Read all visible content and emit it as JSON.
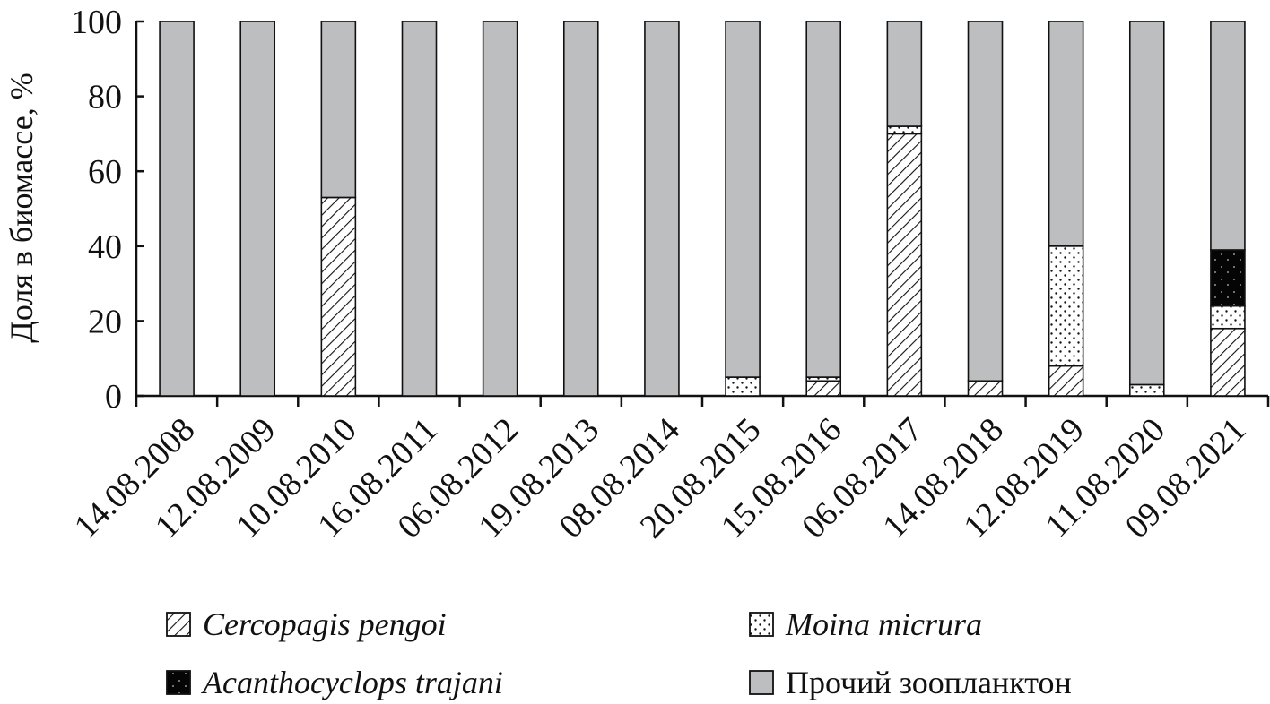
{
  "chart_data": {
    "type": "bar",
    "stacked": true,
    "title": "",
    "xlabel": "",
    "ylabel": "Доля в биомассе, %",
    "ylim": [
      0,
      100
    ],
    "yticks": [
      0,
      20,
      40,
      60,
      80,
      100
    ],
    "grid": false,
    "legend_position": "bottom",
    "categories": [
      "14.08.2008",
      "12.08.2009",
      "10.08.2010",
      "16.08.2011",
      "06.08.2012",
      "19.08.2013",
      "08.08.2014",
      "20.08.2015",
      "15.08.2016",
      "06.08.2017",
      "14.08.2018",
      "12.08.2019",
      "11.08.2020",
      "09.08.2021"
    ],
    "series": [
      {
        "name": "Cercopagis pengoi",
        "pattern": "hatch",
        "values": [
          0,
          0,
          53,
          0,
          0,
          0,
          0,
          0,
          4,
          70,
          4,
          8,
          0,
          18
        ]
      },
      {
        "name": "Moina micrura",
        "pattern": "dots",
        "values": [
          0,
          0,
          0,
          0,
          0,
          0,
          0,
          5,
          1,
          2,
          0,
          32,
          3,
          6
        ]
      },
      {
        "name": "Acanthocyclops trajani",
        "pattern": "solid-black",
        "values": [
          0,
          0,
          0,
          0,
          0,
          0,
          0,
          0,
          0,
          0,
          0,
          0,
          0,
          15
        ]
      },
      {
        "name": "Прочий зоопланктон",
        "pattern": "solid-gray",
        "color": "#bdbebf",
        "values": [
          100,
          100,
          47,
          100,
          100,
          100,
          100,
          95,
          95,
          28,
          96,
          60,
          97,
          61
        ]
      }
    ],
    "legend_layout": [
      {
        "series": 0,
        "col": 0,
        "row": 0
      },
      {
        "series": 1,
        "col": 1,
        "row": 0
      },
      {
        "series": 2,
        "col": 0,
        "row": 1
      },
      {
        "series": 3,
        "col": 1,
        "row": 1
      }
    ]
  }
}
